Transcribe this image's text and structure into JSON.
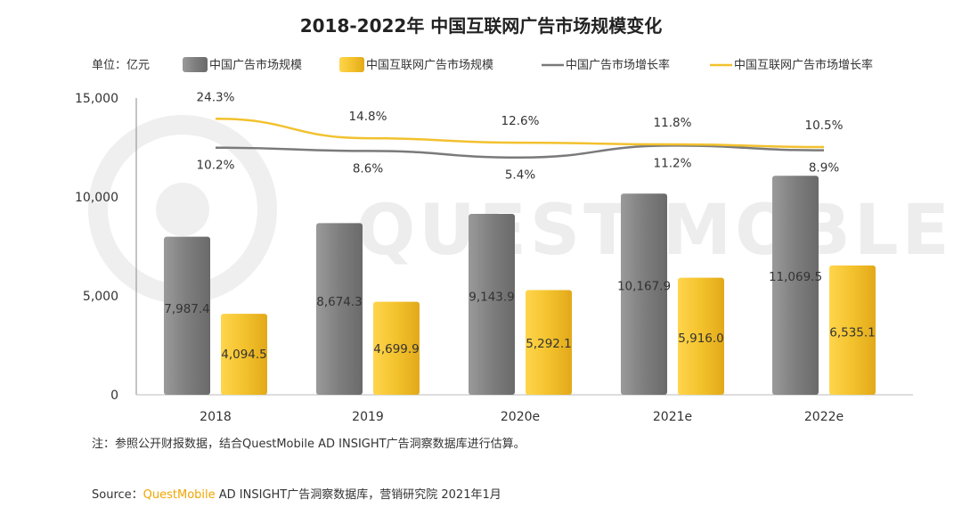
{
  "chart_data": {
    "type": "bar",
    "title": "2018-2022年 中国互联网广告市场规模变化",
    "unit_label": "单位：亿元",
    "categories": [
      "2018",
      "2019",
      "2020e",
      "2021e",
      "2022e"
    ],
    "series": [
      {
        "name": "中国广告市场规模",
        "kind": "bar",
        "color": "#8c8c8c",
        "values": [
          7987.4,
          8674.3,
          9143.9,
          10167.9,
          11069.5
        ],
        "labels": [
          "7,987.4",
          "8,674.3",
          "9,143.9",
          "10,167.9",
          "11,069.5"
        ]
      },
      {
        "name": "中国互联网广告市场规模",
        "kind": "bar",
        "color": "#f2c12e",
        "values": [
          4094.5,
          4699.9,
          5292.1,
          5916.0,
          6535.1
        ],
        "labels": [
          "4,094.5",
          "4,699.9",
          "5,292.1",
          "5,916.0",
          "6,535.1"
        ]
      },
      {
        "name": "中国广告市场增长率",
        "kind": "line",
        "color": "#7a7a7a",
        "values": [
          10.2,
          8.6,
          5.4,
          11.2,
          8.9
        ],
        "labels": [
          "10.2%",
          "8.6%",
          "5.4%",
          "11.2%",
          "8.9%"
        ]
      },
      {
        "name": "中国互联网广告市场增长率",
        "kind": "line",
        "color": "#f2c12e",
        "values": [
          24.3,
          14.8,
          12.6,
          11.8,
          10.5
        ],
        "labels": [
          "24.3%",
          "14.8%",
          "12.6%",
          "11.8%",
          "10.5%"
        ]
      }
    ],
    "ylim": [
      0,
      15000
    ],
    "yticks": [
      0,
      5000,
      10000,
      15000
    ],
    "ytick_labels": [
      "0",
      "5,000",
      "10,000",
      "15,000"
    ],
    "legend_position": "top",
    "grid": false
  },
  "watermark": "QUEST MOBLE",
  "note": "注：参照公开财报数据，结合QuestMobile AD INSIGHT广告洞察数据库进行估算。",
  "source": {
    "prefix": "Source：",
    "brand": "QuestMobile",
    "rest": " AD INSIGHT广告洞察数据库，营销研究院 2021年1月",
    "brand_color": "#f0a500"
  }
}
